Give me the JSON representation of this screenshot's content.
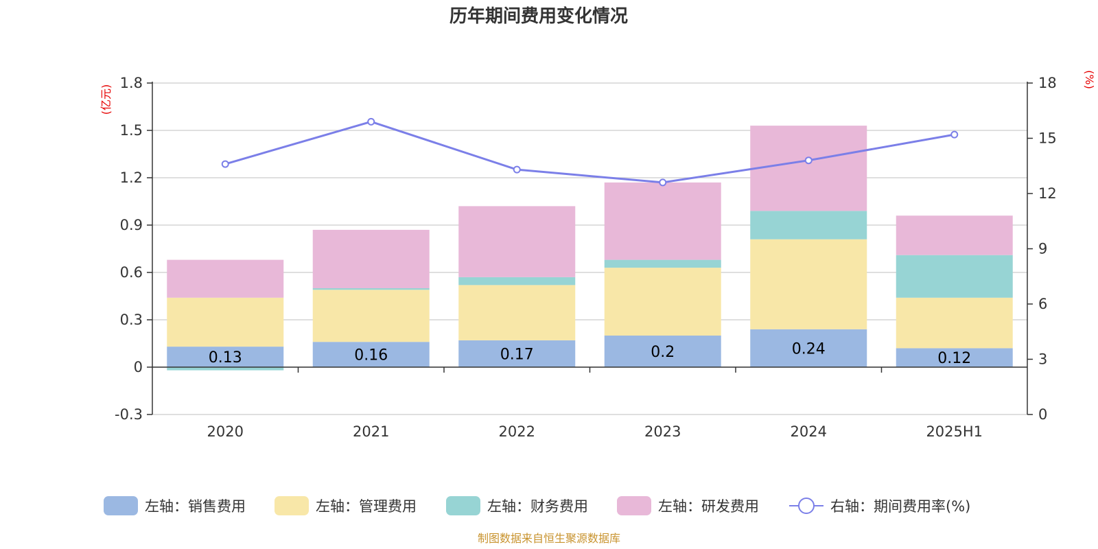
{
  "chart_data": {
    "type": "bar",
    "title": "历年期间费用变化情况",
    "categories": [
      "2020",
      "2021",
      "2022",
      "2023",
      "2024",
      "2025H1"
    ],
    "left_axis": {
      "unit": "(亿元)",
      "ylim": [
        -0.3,
        1.8
      ],
      "ticks": [
        "-0.3",
        "0",
        "0.3",
        "0.6",
        "0.9",
        "1.2",
        "1.5",
        "1.8"
      ],
      "tick_values": [
        -0.3,
        0,
        0.3,
        0.6,
        0.9,
        1.2,
        1.5,
        1.8
      ]
    },
    "right_axis": {
      "unit": "(%)",
      "ylim": [
        0,
        18
      ],
      "ticks": [
        "0",
        "3",
        "6",
        "9",
        "12",
        "15",
        "18"
      ],
      "tick_values": [
        0,
        3,
        6,
        9,
        12,
        15,
        18
      ]
    },
    "grid": true,
    "legend_position": "bottom",
    "series": [
      {
        "name": "左轴：销售费用",
        "type": "bar",
        "axis": "left",
        "color": "#9bb8e2",
        "values": [
          0.13,
          0.16,
          0.17,
          0.2,
          0.24,
          0.12
        ],
        "labels": [
          "0.13",
          "0.16",
          "0.17",
          "0.2",
          "0.24",
          "0.12"
        ]
      },
      {
        "name": "左轴：管理费用",
        "type": "bar",
        "axis": "left",
        "color": "#f8e7a8",
        "values": [
          0.31,
          0.33,
          0.35,
          0.43,
          0.57,
          0.32
        ]
      },
      {
        "name": "左轴：财务费用",
        "type": "bar",
        "axis": "left",
        "color": "#97d4d4",
        "values": [
          -0.02,
          0.01,
          0.05,
          0.05,
          0.18,
          0.27
        ]
      },
      {
        "name": "左轴：研发费用",
        "type": "bar",
        "axis": "left",
        "color": "#e8b8d8",
        "values": [
          0.24,
          0.37,
          0.45,
          0.49,
          0.54,
          0.25
        ]
      },
      {
        "name": "右轴：期间费用率(%)",
        "type": "line",
        "axis": "right",
        "color": "#7b7fe8",
        "values": [
          13.6,
          15.9,
          13.3,
          12.6,
          13.8,
          15.2
        ]
      }
    ]
  },
  "source_text": "制图数据来自恒生聚源数据库"
}
